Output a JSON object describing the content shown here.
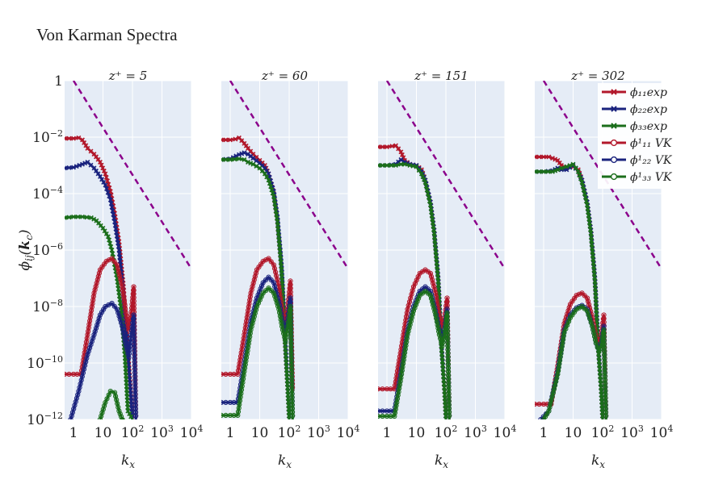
{
  "title": "Von Karman Spectra",
  "colors": {
    "background": "#ffffff",
    "plot_bg": "#e5ecf6",
    "grid": "#ffffff",
    "phi11": "#b2182b",
    "phi22": "#1a237e",
    "phi33": "#1b6e1b",
    "reference": "#8b008b"
  },
  "chart_data": [
    {
      "type": "line",
      "title": "z⁺ = 5",
      "xlabel": "k_x",
      "ylabel": "ϕ_ij(k_c)",
      "xscale": "log",
      "yscale": "log",
      "xlim": [
        0.5,
        10000
      ],
      "ylim": [
        1e-12,
        1
      ],
      "xticks": [
        "1",
        "10",
        "10²",
        "10³",
        "10⁴"
      ],
      "yticks": [
        "1",
        "10⁻²",
        "10⁻⁴",
        "10⁻⁶",
        "10⁻⁸",
        "10⁻¹⁰",
        "10⁻¹²"
      ],
      "grid": true,
      "series": [
        {
          "name": "ϕ₁₁ exp",
          "kind": "exp",
          "color_key": "phi11",
          "x": [
            0.5,
            1,
            1.5,
            2,
            3,
            5,
            8,
            12,
            18,
            25,
            35,
            50,
            70,
            100
          ],
          "y": [
            0.009,
            0.009,
            0.0095,
            0.008,
            0.004,
            0.0025,
            0.0013,
            0.0005,
            0.00012,
            2e-05,
            2e-06,
            5e-08,
            3e-10,
            1e-12
          ]
        },
        {
          "name": "ϕ₂₂ exp",
          "kind": "exp",
          "color_key": "phi22",
          "x": [
            0.5,
            1,
            2,
            3,
            5,
            8,
            12,
            18,
            25,
            35,
            50,
            70,
            100
          ],
          "y": [
            0.0008,
            0.00085,
            0.0011,
            0.0013,
            0.0008,
            0.0004,
            0.0002,
            6e-05,
            1e-05,
            1e-06,
            2e-08,
            2e-10,
            1e-12
          ]
        },
        {
          "name": "ϕ₃₃ exp",
          "kind": "exp",
          "color_key": "phi33",
          "x": [
            0.5,
            1,
            2,
            4,
            6,
            10,
            15,
            20,
            30,
            40,
            55,
            70,
            100
          ],
          "y": [
            1.4e-05,
            1.5e-05,
            1.5e-05,
            1.4e-05,
            1.1e-05,
            6e-06,
            3e-06,
            1e-06,
            1e-07,
            1e-08,
            2e-10,
            2e-12,
            1e-12
          ]
        },
        {
          "name": "ϕ¹₁₁ VK",
          "kind": "vk",
          "color_key": "phi11",
          "x": [
            0.5,
            1,
            1.8,
            3,
            5,
            8,
            13,
            20,
            30,
            45,
            60,
            75,
            90,
            110,
            130
          ],
          "y": [
            4e-11,
            4e-11,
            4e-11,
            1e-09,
            3e-08,
            2e-07,
            4e-07,
            5e-07,
            3e-07,
            5e-08,
            6e-09,
            1.5e-09,
            5e-09,
            5e-08,
            1e-12
          ]
        },
        {
          "name": "ϕ¹₂₂ VK",
          "kind": "vk",
          "color_key": "phi22",
          "x": [
            0.8,
            1.5,
            3,
            5,
            8,
            12,
            20,
            30,
            45,
            60,
            75,
            90,
            110,
            130
          ],
          "y": [
            1e-12,
            1e-11,
            2e-10,
            1e-09,
            5e-09,
            1e-08,
            1.3e-08,
            8e-09,
            2e-09,
            4e-10,
            1.6e-10,
            1e-09,
            5e-09,
            1e-12
          ]
        },
        {
          "name": "ϕ¹₃₃ VK",
          "kind": "vk",
          "color_key": "phi33",
          "x": [
            8,
            12,
            18,
            25,
            35,
            45,
            55
          ],
          "y": [
            1e-12,
            4e-12,
            1e-11,
            9e-12,
            2e-12,
            1e-12,
            1e-12
          ]
        }
      ],
      "reference_line": {
        "x": [
          1,
          10000
        ],
        "y": [
          1,
          2.15e-07
        ]
      }
    },
    {
      "type": "line",
      "title": "z⁺ = 60",
      "xlabel": "k_x",
      "xscale": "log",
      "yscale": "log",
      "xlim": [
        0.5,
        10000
      ],
      "ylim": [
        1e-12,
        1
      ],
      "xticks": [
        "1",
        "10",
        "10²",
        "10³",
        "10⁴"
      ],
      "grid": true,
      "series": [
        {
          "name": "ϕ₁₁ exp",
          "kind": "exp",
          "color_key": "phi11",
          "x": [
            0.5,
            1,
            1.5,
            2,
            3,
            4,
            6,
            10,
            15,
            20,
            30,
            40,
            55,
            70,
            90,
            100
          ],
          "y": [
            0.008,
            0.008,
            0.0085,
            0.0095,
            0.006,
            0.004,
            0.0025,
            0.0015,
            0.001,
            0.0005,
            0.0001,
            1e-05,
            2e-07,
            1e-09,
            1e-11,
            1e-12
          ]
        },
        {
          "name": "ϕ₂₂ exp",
          "kind": "exp",
          "color_key": "phi22",
          "x": [
            0.5,
            1,
            2,
            3,
            4,
            6,
            10,
            15,
            20,
            30,
            40,
            55,
            70,
            90,
            100
          ],
          "y": [
            0.0016,
            0.0017,
            0.0024,
            0.0028,
            0.0025,
            0.0018,
            0.0012,
            0.0008,
            0.0005,
            0.00012,
            1.5e-05,
            3e-07,
            2e-09,
            1e-11,
            1e-12
          ]
        },
        {
          "name": "ϕ₃₃ exp",
          "kind": "exp",
          "color_key": "phi33",
          "x": [
            0.5,
            1,
            2,
            3,
            4,
            6,
            10,
            15,
            20,
            30,
            40,
            55,
            70,
            90,
            100
          ],
          "y": [
            0.0016,
            0.0016,
            0.0017,
            0.0016,
            0.0013,
            0.0011,
            0.0008,
            0.0005,
            0.0003,
            8e-05,
            1e-05,
            2e-07,
            1e-09,
            1e-11,
            1e-12
          ]
        },
        {
          "name": "ϕ¹₁₁ VK",
          "kind": "vk",
          "color_key": "phi11",
          "x": [
            0.5,
            1,
            1.8,
            3,
            5,
            8,
            13,
            20,
            30,
            45,
            60,
            75,
            90,
            110,
            130
          ],
          "y": [
            4e-11,
            4e-11,
            4e-11,
            1e-09,
            3e-08,
            2e-07,
            4e-07,
            5e-07,
            3e-07,
            5e-08,
            6e-09,
            3e-09,
            1e-08,
            8e-08,
            1e-11
          ]
        },
        {
          "name": "ϕ¹₂₂ VK",
          "kind": "vk",
          "color_key": "phi22",
          "x": [
            0.5,
            1,
            1.8,
            3,
            5,
            8,
            13,
            20,
            30,
            45,
            60,
            75,
            90,
            110,
            130
          ],
          "y": [
            4e-12,
            4e-12,
            4e-12,
            1e-10,
            3e-09,
            2e-08,
            7e-08,
            1.1e-07,
            7e-08,
            1.5e-08,
            3e-09,
            1.2e-09,
            4e-09,
            2e-08,
            1e-12
          ]
        },
        {
          "name": "ϕ¹₃₃ VK",
          "kind": "vk",
          "color_key": "phi33",
          "x": [
            0.5,
            1,
            1.8,
            3,
            5,
            8,
            13,
            20,
            30,
            45,
            60,
            75,
            90,
            110,
            130
          ],
          "y": [
            1.4e-12,
            1.4e-12,
            1.4e-12,
            5e-11,
            1.5e-09,
            1e-08,
            3e-08,
            4.5e-08,
            3e-08,
            8e-09,
            1.5e-09,
            6e-10,
            2e-09,
            1e-08,
            1e-12
          ]
        }
      ],
      "reference_line": {
        "x": [
          1,
          10000
        ],
        "y": [
          1,
          2.15e-07
        ]
      }
    },
    {
      "type": "line",
      "title": "z⁺ = 151",
      "xlabel": "k_x",
      "xscale": "log",
      "yscale": "log",
      "xlim": [
        0.5,
        10000
      ],
      "ylim": [
        1e-12,
        1
      ],
      "xticks": [
        "1",
        "10",
        "10²",
        "10³",
        "10⁴"
      ],
      "grid": true,
      "series": [
        {
          "name": "ϕ₁₁ exp",
          "kind": "exp",
          "color_key": "phi11",
          "x": [
            0.5,
            1,
            1.5,
            2,
            3,
            4,
            6,
            10,
            15,
            20,
            30,
            40,
            55,
            70,
            90,
            100
          ],
          "y": [
            0.0045,
            0.0045,
            0.0048,
            0.005,
            0.003,
            0.0015,
            0.0011,
            0.001,
            0.0007,
            0.0003,
            5e-05,
            5e-06,
            1e-07,
            5e-10,
            1e-11,
            1e-12
          ]
        },
        {
          "name": "ϕ₂₂ exp",
          "kind": "exp",
          "color_key": "phi22",
          "x": [
            0.5,
            1,
            2,
            3,
            4,
            6,
            10,
            15,
            20,
            30,
            40,
            55,
            70,
            90,
            100
          ],
          "y": [
            0.001,
            0.001,
            0.0011,
            0.0016,
            0.0013,
            0.0011,
            0.001,
            0.0006,
            0.0003,
            5e-05,
            5e-06,
            1e-07,
            5e-10,
            1e-11,
            1e-12
          ]
        },
        {
          "name": "ϕ₃₃ exp",
          "kind": "exp",
          "color_key": "phi33",
          "x": [
            0.5,
            1,
            2,
            3,
            4,
            6,
            10,
            15,
            20,
            30,
            40,
            55,
            70,
            90,
            100
          ],
          "y": [
            0.001,
            0.001,
            0.001,
            0.0011,
            0.0011,
            0.001,
            0.0009,
            0.0005,
            0.00025,
            4e-05,
            4e-06,
            8e-08,
            4e-10,
            1e-11,
            1e-12
          ]
        },
        {
          "name": "ϕ¹₁₁ VK",
          "kind": "vk",
          "color_key": "phi11",
          "x": [
            0.5,
            1,
            1.8,
            3,
            5,
            8,
            13,
            20,
            30,
            45,
            60,
            75,
            90,
            110,
            130
          ],
          "y": [
            1.2e-11,
            1.2e-11,
            1.2e-11,
            3e-10,
            8e-09,
            5e-08,
            1.5e-07,
            2e-07,
            1.5e-07,
            3e-08,
            5e-09,
            2e-09,
            4e-09,
            2e-08,
            1e-12
          ]
        },
        {
          "name": "ϕ¹₂₂ VK",
          "kind": "vk",
          "color_key": "phi22",
          "x": [
            0.5,
            1,
            1.8,
            3,
            5,
            8,
            13,
            20,
            30,
            45,
            60,
            75,
            90,
            110,
            130
          ],
          "y": [
            2e-12,
            2e-12,
            2e-12,
            5e-11,
            1.5e-09,
            1e-08,
            3.5e-08,
            5e-08,
            3.5e-08,
            7e-09,
            1.5e-09,
            6e-10,
            1.5e-09,
            8e-09,
            1e-12
          ]
        },
        {
          "name": "ϕ¹₃₃ VK",
          "kind": "vk",
          "color_key": "phi33",
          "x": [
            0.5,
            1,
            1.8,
            3,
            5,
            8,
            13,
            20,
            30,
            45,
            60,
            75,
            90,
            110,
            130
          ],
          "y": [
            1.3e-12,
            1.3e-12,
            1.3e-12,
            3e-11,
            1e-09,
            7e-09,
            2.5e-08,
            3.5e-08,
            2.5e-08,
            5e-09,
            1e-09,
            4e-10,
            1e-09,
            6e-09,
            1e-12
          ]
        }
      ],
      "reference_line": {
        "x": [
          1,
          10000
        ],
        "y": [
          1,
          2.15e-07
        ]
      }
    },
    {
      "type": "line",
      "title": "z⁺ = 302",
      "xlabel": "k_x",
      "xscale": "log",
      "yscale": "log",
      "xlim": [
        0.5,
        10000
      ],
      "ylim": [
        1e-12,
        1
      ],
      "xticks": [
        "1",
        "10",
        "10²",
        "10³",
        "10⁴"
      ],
      "grid": true,
      "series": [
        {
          "name": "ϕ₁₁ exp",
          "kind": "exp",
          "color_key": "phi11",
          "x": [
            0.5,
            1,
            1.5,
            2,
            3,
            4,
            6,
            10,
            15,
            20,
            30,
            40,
            55,
            70,
            90,
            100
          ],
          "y": [
            0.002,
            0.002,
            0.002,
            0.0018,
            0.0015,
            0.001,
            0.0008,
            0.0009,
            0.0007,
            0.0003,
            5e-05,
            5e-06,
            1e-07,
            5e-10,
            1e-11,
            1e-12
          ]
        },
        {
          "name": "ϕ₂₂ exp",
          "kind": "exp",
          "color_key": "phi22",
          "x": [
            0.5,
            1,
            2,
            3,
            4,
            6,
            10,
            15,
            20,
            30,
            40,
            55,
            70,
            90,
            100
          ],
          "y": [
            0.0006,
            0.0006,
            0.00065,
            0.0008,
            0.0007,
            0.0007,
            0.001,
            0.0006,
            0.0003,
            5e-05,
            5e-06,
            1e-07,
            5e-10,
            1e-11,
            1e-12
          ]
        },
        {
          "name": "ϕ₃₃ exp",
          "kind": "exp",
          "color_key": "phi33",
          "x": [
            0.5,
            1,
            2,
            3,
            4,
            6,
            10,
            15,
            20,
            30,
            40,
            55,
            70,
            90,
            100
          ],
          "y": [
            0.0006,
            0.0006,
            0.0006,
            0.0007,
            0.0008,
            0.0009,
            0.0011,
            0.0006,
            0.00025,
            4e-05,
            4e-06,
            8e-08,
            4e-10,
            1e-11,
            1e-12
          ]
        },
        {
          "name": "ϕ¹₁₁ VK",
          "kind": "vk",
          "color_key": "phi11",
          "x": [
            0.5,
            1,
            1.8,
            3,
            5,
            8,
            13,
            20,
            30,
            45,
            60,
            75,
            90,
            110,
            130
          ],
          "y": [
            3.5e-12,
            3.5e-12,
            3.5e-12,
            8e-11,
            2.5e-09,
            1.2e-08,
            2.5e-08,
            3e-08,
            2e-08,
            4e-09,
            8e-10,
            5e-10,
            1e-09,
            5e-09,
            1e-12
          ]
        },
        {
          "name": "ϕ¹₂₂ VK",
          "kind": "vk",
          "color_key": "phi22",
          "x": [
            0.8,
            1.5,
            3,
            5,
            8,
            13,
            20,
            30,
            45,
            60,
            75,
            90,
            110,
            130
          ],
          "y": [
            1e-12,
            2e-12,
            5e-11,
            1.5e-09,
            5e-09,
            9e-09,
            1.1e-08,
            8e-09,
            2e-09,
            5e-10,
            3e-10,
            5e-10,
            2e-09,
            1e-12
          ]
        },
        {
          "name": "ϕ¹₃₃ VK",
          "kind": "vk",
          "color_key": "phi33",
          "x": [
            1,
            1.5,
            3,
            5,
            8,
            13,
            20,
            30,
            45,
            60,
            75,
            90,
            110,
            130
          ],
          "y": [
            1e-12,
            2e-12,
            4e-11,
            1.2e-09,
            4e-09,
            8e-09,
            1e-08,
            7e-09,
            2e-09,
            5e-10,
            2.5e-10,
            4e-10,
            1.5e-09,
            1e-12
          ]
        }
      ],
      "reference_line": {
        "x": [
          1,
          10000
        ],
        "y": [
          1,
          2.15e-07
        ]
      }
    }
  ],
  "legend": {
    "placement": "top-right",
    "items": [
      {
        "label": "ϕ₁₁exp",
        "kind": "exp",
        "color_key": "phi11"
      },
      {
        "label": "ϕ₂₂exp",
        "kind": "exp",
        "color_key": "phi22"
      },
      {
        "label": "ϕ₃₃exp",
        "kind": "exp",
        "color_key": "phi33"
      },
      {
        "label": "ϕ¹₁₁ VK",
        "kind": "vk",
        "color_key": "phi11"
      },
      {
        "label": "ϕ¹₂₂ VK",
        "kind": "vk",
        "color_key": "phi22"
      },
      {
        "label": "ϕ¹₃₃ VK",
        "kind": "vk",
        "color_key": "phi33"
      }
    ]
  }
}
